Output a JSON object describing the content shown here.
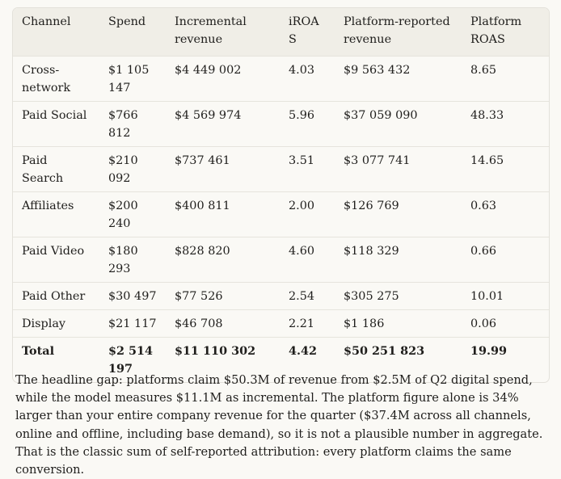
{
  "table": {
    "headers": [
      "Channel",
      "Spend",
      "Incremental revenue",
      "iROAS",
      "Platform-reported revenue",
      "Platform ROAS"
    ],
    "rows": [
      [
        "Cross-network",
        "$1 105 147",
        "$4 449 002",
        "4.03",
        "$9 563 432",
        "8.65"
      ],
      [
        "Paid Social",
        "$766 812",
        "$4 569 974",
        "5.96",
        "$37 059 090",
        "48.33"
      ],
      [
        "Paid Search",
        "$210 092",
        "$737 461",
        "3.51",
        "$3 077 741",
        "14.65"
      ],
      [
        "Affiliates",
        "$200 240",
        "$400 811",
        "2.00",
        "$126 769",
        "0.63"
      ],
      [
        "Paid Video",
        "$180 293",
        "$828 820",
        "4.60",
        "$118 329",
        "0.66"
      ],
      [
        "Paid Other",
        "$30 497",
        "$77 526",
        "2.54",
        "$305 275",
        "10.01"
      ],
      [
        "Display",
        "$21 117",
        "$46 708",
        "2.21",
        "$1 186",
        "0.06"
      ],
      [
        "Total",
        "$2 514 197",
        "$11 110 302",
        "4.42",
        "$50 251 823",
        "19.99"
      ]
    ]
  },
  "summary": "The headline gap: platforms claim $50.3M of revenue from $2.5M of Q2 digital spend, while the model measures $11.1M as incremental. The platform figure alone is 34% larger than your entire company revenue for the quarter ($37.4M across all channels, online and offline, including base demand), so it is not a plausible number in aggregate. That is the classic sum of self-reported attribution: every platform claims the same conversion."
}
